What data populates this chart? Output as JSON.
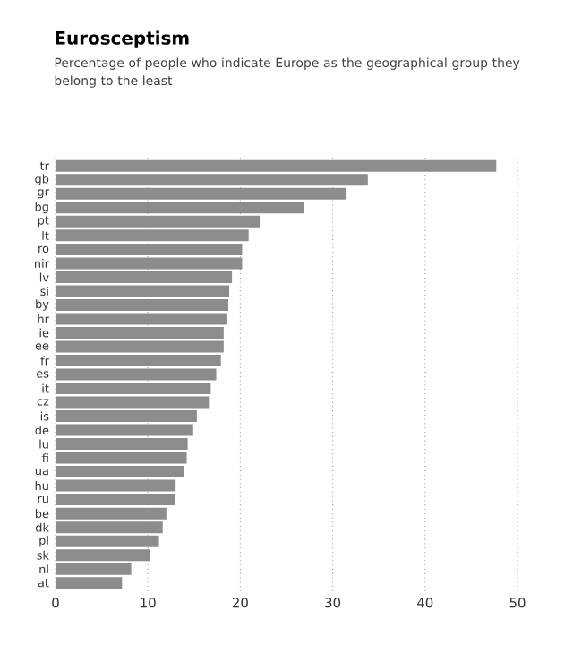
{
  "chart_data": {
    "type": "bar",
    "orientation": "horizontal",
    "title": "Eurosceptism",
    "subtitle": "Percentage of people who indicate Europe as the geographical group they belong to the least",
    "categories": [
      "tr",
      "gb",
      "gr",
      "bg",
      "pt",
      "lt",
      "ro",
      "nir",
      "lv",
      "si",
      "by",
      "hr",
      "ie",
      "ee",
      "fr",
      "es",
      "it",
      "cz",
      "is",
      "de",
      "lu",
      "fi",
      "ua",
      "hu",
      "ru",
      "be",
      "dk",
      "pl",
      "sk",
      "nl",
      "at"
    ],
    "values": [
      47.7,
      33.8,
      31.5,
      26.9,
      22.1,
      20.9,
      20.2,
      20.2,
      19.1,
      18.8,
      18.7,
      18.5,
      18.2,
      18.2,
      17.9,
      17.4,
      16.8,
      16.6,
      15.3,
      14.9,
      14.3,
      14.2,
      13.9,
      13.0,
      12.9,
      12.0,
      11.6,
      11.2,
      10.2,
      8.2,
      7.2
    ],
    "color": "#8c8c8c",
    "xlim": [
      0,
      50
    ],
    "xticks": [
      0,
      10,
      20,
      30,
      40,
      50
    ],
    "grid": "x"
  }
}
